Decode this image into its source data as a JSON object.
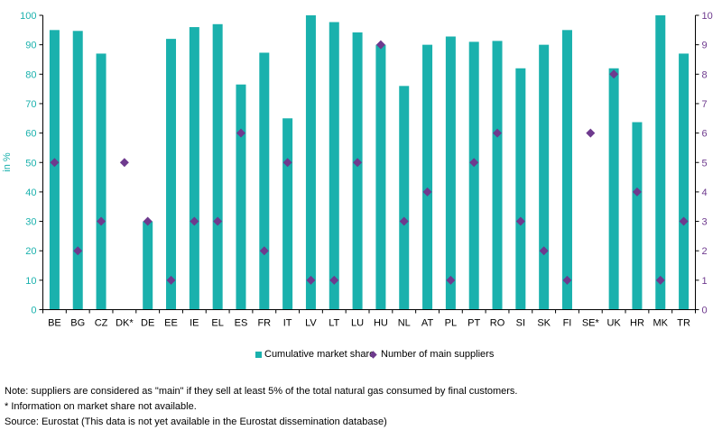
{
  "chart_data": {
    "type": "bar",
    "categories": [
      "BE",
      "BG",
      "CZ",
      "DK*",
      "DE",
      "EE",
      "IE",
      "EL",
      "ES",
      "FR",
      "IT",
      "LV",
      "LT",
      "LU",
      "HU",
      "NL",
      "AT",
      "PL",
      "PT",
      "RO",
      "SI",
      "SK",
      "FI",
      "SE*",
      "UK",
      "HR",
      "MK",
      "TR"
    ],
    "series": [
      {
        "name": "Cumulative market share",
        "type": "bar",
        "axis": "left",
        "color": "#1ab1ad",
        "values": [
          95,
          94.7,
          87,
          null,
          30,
          92,
          96,
          97,
          76.5,
          87.3,
          65,
          100,
          97.7,
          94.2,
          90,
          76,
          90,
          92.8,
          91,
          91.3,
          82,
          90,
          95,
          null,
          82,
          63.7,
          100,
          87
        ]
      },
      {
        "name": "Number of main suppliers",
        "type": "scatter",
        "axis": "right",
        "color": "#6e3a8e",
        "values": [
          5,
          2,
          3,
          5,
          3,
          1,
          3,
          3,
          6,
          2,
          5,
          1,
          1,
          5,
          9,
          3,
          4,
          1,
          5,
          6,
          3,
          2,
          1,
          6,
          8,
          4,
          1,
          3
        ]
      }
    ],
    "ylabel": "in %",
    "ylim": [
      0,
      100
    ],
    "yticks": [
      "0",
      "10",
      "20",
      "30",
      "40",
      "50",
      "60",
      "70",
      "80",
      "90",
      "100"
    ],
    "y2lim": [
      0,
      10
    ],
    "y2ticks": [
      "0",
      "1",
      "2",
      "3",
      "4",
      "5",
      "6",
      "7",
      "8",
      "9",
      "10"
    ],
    "grid": false,
    "legend": "bottom",
    "left_axis_color": "#1ab1ad",
    "right_axis_color": "#6e3a8e"
  },
  "legend": {
    "bar_label": "Cumulative market share",
    "point_label": "Number of main suppliers"
  },
  "notes": {
    "note1": "Note: suppliers are considered as \"main\" if they sell at least 5% of the total natural gas consumed by final customers.",
    "note2": "* Information on market share not available.",
    "note3": "Source: Eurostat (This data is not yet available in the Eurostat dissemination database)"
  }
}
